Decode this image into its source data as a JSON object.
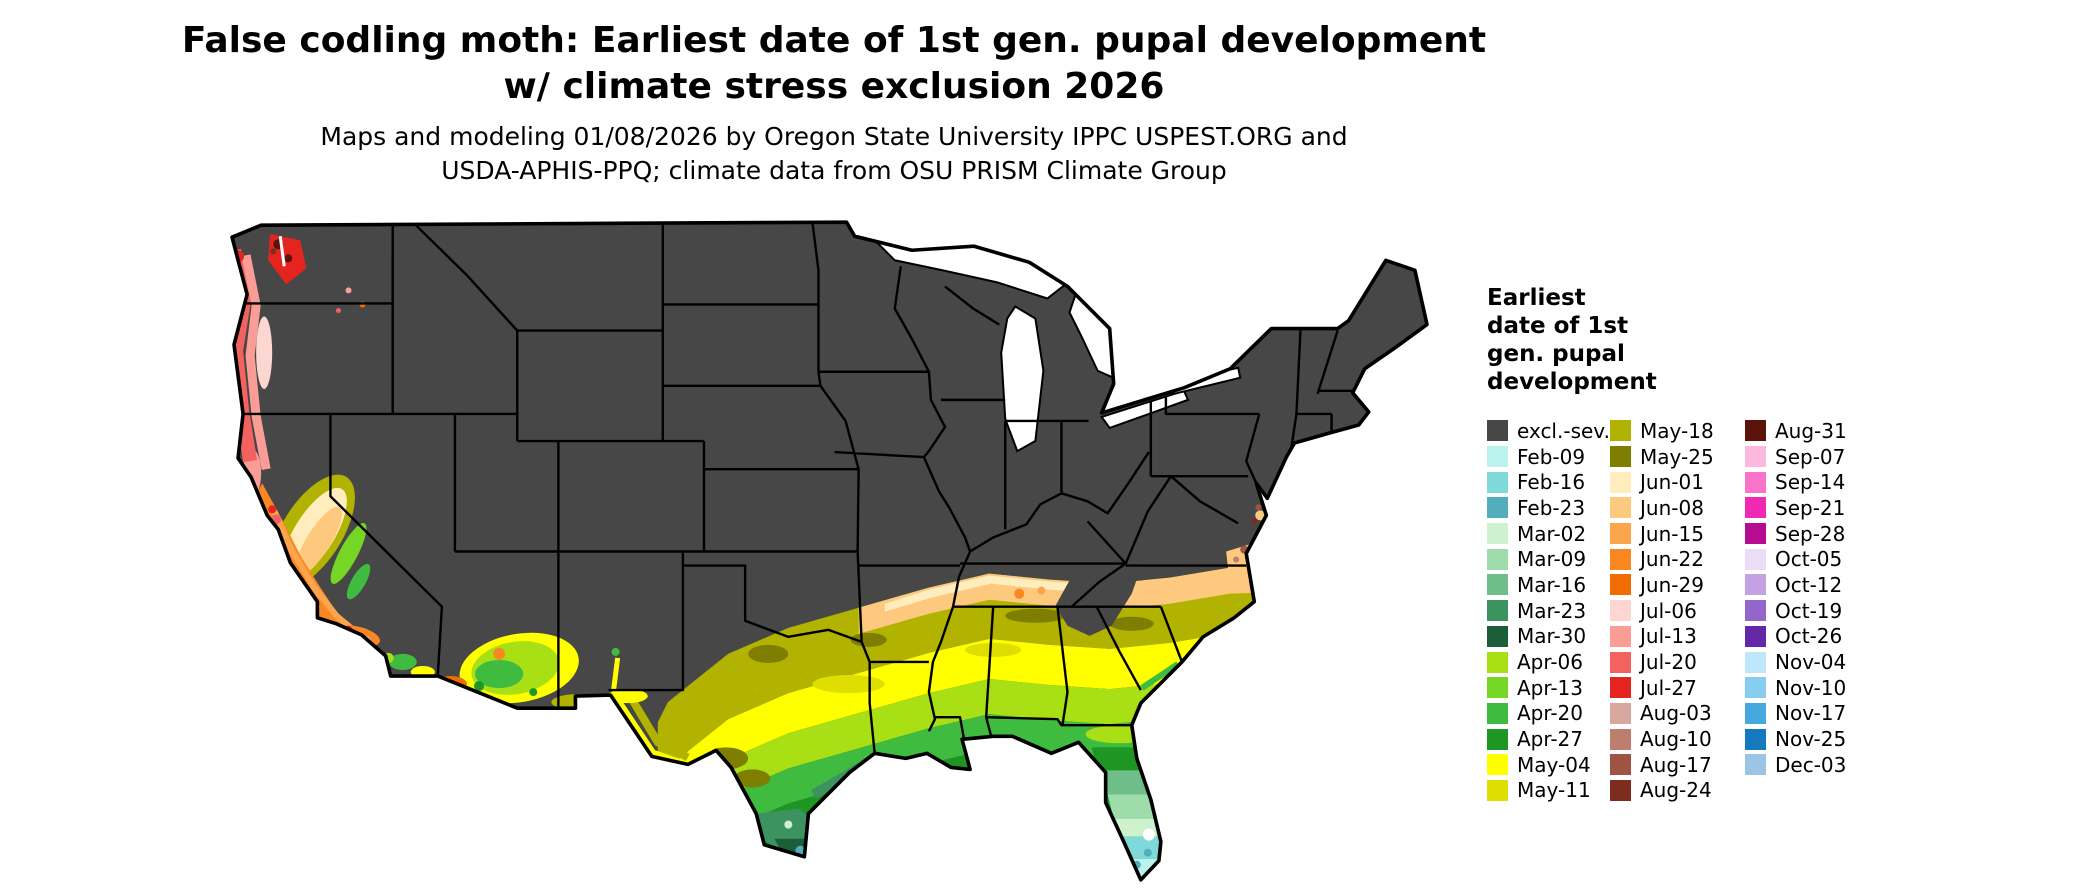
{
  "header": {
    "title_line1": "False codling moth: Earliest date of 1st gen. pupal development",
    "title_line2": "w/ climate stress exclusion 2026",
    "subtitle_line1": "Maps and modeling 01/08/2026 by Oregon State University IPPC USPEST.ORG and",
    "subtitle_line2": "USDA-APHIS-PPQ; climate data from OSU PRISM Climate Group"
  },
  "legend": {
    "title_lines": [
      "Earliest",
      "date of 1st",
      "gen. pupal",
      "development"
    ],
    "columns": [
      [
        {
          "label": "excl.-sev.",
          "color": "#474747"
        },
        {
          "label": "Feb-09",
          "color": "#baf2ec"
        },
        {
          "label": "Feb-16",
          "color": "#7fd9d9"
        },
        {
          "label": "Feb-23",
          "color": "#52aebd"
        },
        {
          "label": "Mar-02",
          "color": "#cdf2cd"
        },
        {
          "label": "Mar-09",
          "color": "#9fdcab"
        },
        {
          "label": "Mar-16",
          "color": "#6fbd88"
        },
        {
          "label": "Mar-23",
          "color": "#3c9360"
        },
        {
          "label": "Mar-30",
          "color": "#1b5e38"
        },
        {
          "label": "Apr-06",
          "color": "#a8e015"
        },
        {
          "label": "Apr-13",
          "color": "#75d626"
        },
        {
          "label": "Apr-20",
          "color": "#3fbb3f"
        },
        {
          "label": "Apr-27",
          "color": "#1e9623"
        },
        {
          "label": "May-04",
          "color": "#ffff00"
        },
        {
          "label": "May-11",
          "color": "#dede00"
        }
      ],
      [
        {
          "label": "May-18",
          "color": "#b2b200"
        },
        {
          "label": "May-25",
          "color": "#7e7e00"
        },
        {
          "label": "Jun-01",
          "color": "#ffedbe"
        },
        {
          "label": "Jun-08",
          "color": "#fdc97e"
        },
        {
          "label": "Jun-15",
          "color": "#fca54c"
        },
        {
          "label": "Jun-22",
          "color": "#fb8722"
        },
        {
          "label": "Jun-29",
          "color": "#f06d00"
        },
        {
          "label": "Jul-06",
          "color": "#fcd7d2"
        },
        {
          "label": "Jul-13",
          "color": "#f99d96"
        },
        {
          "label": "Jul-20",
          "color": "#f2635f"
        },
        {
          "label": "Jul-27",
          "color": "#e52420"
        },
        {
          "label": "Aug-03",
          "color": "#d8a79e"
        },
        {
          "label": "Aug-10",
          "color": "#bd7d6f"
        },
        {
          "label": "Aug-17",
          "color": "#9e5343"
        },
        {
          "label": "Aug-24",
          "color": "#7c2d1e"
        }
      ],
      [
        {
          "label": "Aug-31",
          "color": "#5c130b"
        },
        {
          "label": "Sep-07",
          "color": "#fcb8dd"
        },
        {
          "label": "Sep-14",
          "color": "#f973c8"
        },
        {
          "label": "Sep-21",
          "color": "#ef29b4"
        },
        {
          "label": "Sep-28",
          "color": "#b50c92"
        },
        {
          "label": "Oct-05",
          "color": "#ecdcf5"
        },
        {
          "label": "Oct-12",
          "color": "#c3a1e3"
        },
        {
          "label": "Oct-19",
          "color": "#9366cb"
        },
        {
          "label": "Oct-26",
          "color": "#6328a8"
        },
        {
          "label": "Nov-04",
          "color": "#bfe7fb"
        },
        {
          "label": "Nov-10",
          "color": "#86cdf0"
        },
        {
          "label": "Nov-17",
          "color": "#46a8dd"
        },
        {
          "label": "Nov-25",
          "color": "#1679be"
        },
        {
          "label": "Dec-03",
          "color": "#9cc4e4"
        }
      ]
    ]
  },
  "map": {
    "water_color": "#ffffff",
    "border_color": "#000000"
  }
}
